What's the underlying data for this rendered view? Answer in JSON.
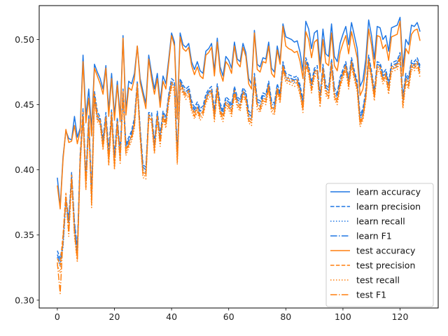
{
  "chart_data": {
    "type": "line",
    "title": "",
    "xlabel": "",
    "ylabel": "",
    "xlim": [
      -6.35,
      133.35
    ],
    "ylim": [
      0.294,
      0.526
    ],
    "xticks": [
      0,
      20,
      40,
      60,
      80,
      100,
      120
    ],
    "yticks": [
      0.3,
      0.35,
      0.4,
      0.45,
      0.5
    ],
    "grid": false,
    "legend_position": "lower-right",
    "colors": {
      "learn": "#1f77e4",
      "test": "#ff7f0e"
    },
    "series": [
      {
        "name": "learn accuracy",
        "group": "learn",
        "dash": "solid",
        "values": [
          0.394,
          0.372,
          0.41,
          0.43,
          0.424,
          0.423,
          0.441,
          0.425,
          0.432,
          0.488,
          0.441,
          0.462,
          0.432,
          0.481,
          0.475,
          0.47,
          0.462,
          0.48,
          0.446,
          0.474,
          0.442,
          0.468,
          0.441,
          0.503,
          0.446,
          0.468,
          0.466,
          0.474,
          0.495,
          0.47,
          0.46,
          0.451,
          0.488,
          0.474,
          0.462,
          0.474,
          0.452,
          0.472,
          0.466,
          0.485,
          0.505,
          0.498,
          0.443,
          0.505,
          0.496,
          0.494,
          0.497,
          0.483,
          0.477,
          0.483,
          0.476,
          0.474,
          0.491,
          0.493,
          0.497,
          0.476,
          0.501,
          0.479,
          0.472,
          0.487,
          0.484,
          0.478,
          0.498,
          0.485,
          0.483,
          0.497,
          0.49,
          0.47,
          0.466,
          0.507,
          0.481,
          0.479,
          0.486,
          0.485,
          0.498,
          0.478,
          0.475,
          0.495,
          0.484,
          0.512,
          0.502,
          0.501,
          0.5,
          0.498,
          0.499,
          0.49,
          0.476,
          0.514,
          0.508,
          0.493,
          0.505,
          0.507,
          0.481,
          0.508,
          0.489,
          0.487,
          0.512,
          0.487,
          0.483,
          0.497,
          0.504,
          0.51,
          0.496,
          0.513,
          0.503,
          0.493,
          0.464,
          0.469,
          0.485,
          0.515,
          0.503,
          0.485,
          0.51,
          0.509,
          0.5,
          0.503,
          0.491,
          0.509,
          0.51,
          0.511,
          0.517,
          0.479,
          0.5,
          0.496,
          0.511,
          0.51,
          0.513,
          0.506
        ]
      },
      {
        "name": "learn precision",
        "group": "learn",
        "dash": "dashed",
        "values": [
          0.338,
          0.332,
          0.345,
          0.38,
          0.362,
          0.398,
          0.36,
          0.34,
          0.412,
          0.447,
          0.395,
          0.442,
          0.383,
          0.46,
          0.445,
          0.44,
          0.424,
          0.444,
          0.415,
          0.446,
          0.411,
          0.44,
          0.414,
          0.462,
          0.42,
          0.425,
          0.43,
          0.44,
          0.468,
          0.432,
          0.404,
          0.402,
          0.444,
          0.444,
          0.421,
          0.445,
          0.427,
          0.445,
          0.44,
          0.458,
          0.47,
          0.468,
          0.414,
          0.47,
          0.465,
          0.462,
          0.464,
          0.453,
          0.448,
          0.452,
          0.447,
          0.449,
          0.458,
          0.462,
          0.464,
          0.446,
          0.466,
          0.451,
          0.446,
          0.456,
          0.454,
          0.45,
          0.464,
          0.456,
          0.454,
          0.463,
          0.46,
          0.445,
          0.443,
          0.474,
          0.454,
          0.453,
          0.459,
          0.458,
          0.468,
          0.453,
          0.451,
          0.466,
          0.459,
          0.483,
          0.474,
          0.473,
          0.472,
          0.471,
          0.472,
          0.465,
          0.453,
          0.486,
          0.48,
          0.467,
          0.478,
          0.48,
          0.457,
          0.481,
          0.465,
          0.463,
          0.485,
          0.463,
          0.459,
          0.471,
          0.477,
          0.483,
          0.47,
          0.486,
          0.476,
          0.468,
          0.442,
          0.447,
          0.461,
          0.488,
          0.476,
          0.461,
          0.483,
          0.482,
          0.474,
          0.477,
          0.467,
          0.482,
          0.483,
          0.484,
          0.49,
          0.456,
          0.474,
          0.471,
          0.484,
          0.483,
          0.486,
          0.48
        ]
      },
      {
        "name": "learn recall",
        "group": "learn",
        "dash": "dotted",
        "values": [
          0.333,
          0.326,
          0.341,
          0.375,
          0.359,
          0.393,
          0.356,
          0.336,
          0.405,
          0.441,
          0.39,
          0.437,
          0.378,
          0.455,
          0.44,
          0.436,
          0.42,
          0.44,
          0.41,
          0.441,
          0.407,
          0.436,
          0.41,
          0.458,
          0.416,
          0.421,
          0.426,
          0.436,
          0.464,
          0.428,
          0.4,
          0.398,
          0.44,
          0.44,
          0.417,
          0.441,
          0.423,
          0.441,
          0.436,
          0.454,
          0.466,
          0.464,
          0.41,
          0.466,
          0.461,
          0.458,
          0.46,
          0.449,
          0.444,
          0.448,
          0.443,
          0.445,
          0.454,
          0.458,
          0.46,
          0.442,
          0.462,
          0.447,
          0.442,
          0.452,
          0.45,
          0.446,
          0.46,
          0.452,
          0.45,
          0.459,
          0.456,
          0.441,
          0.439,
          0.47,
          0.45,
          0.449,
          0.455,
          0.454,
          0.464,
          0.449,
          0.447,
          0.462,
          0.455,
          0.479,
          0.47,
          0.469,
          0.468,
          0.467,
          0.468,
          0.461,
          0.449,
          0.482,
          0.476,
          0.463,
          0.474,
          0.476,
          0.453,
          0.477,
          0.461,
          0.459,
          0.481,
          0.459,
          0.455,
          0.467,
          0.473,
          0.479,
          0.466,
          0.482,
          0.472,
          0.464,
          0.438,
          0.443,
          0.457,
          0.484,
          0.472,
          0.457,
          0.479,
          0.478,
          0.47,
          0.473,
          0.463,
          0.478,
          0.479,
          0.48,
          0.486,
          0.452,
          0.47,
          0.467,
          0.48,
          0.479,
          0.482,
          0.476
        ]
      },
      {
        "name": "learn F1",
        "group": "learn",
        "dash": "dashdot",
        "values": [
          0.335,
          0.329,
          0.343,
          0.377,
          0.36,
          0.395,
          0.358,
          0.338,
          0.408,
          0.444,
          0.392,
          0.439,
          0.38,
          0.457,
          0.442,
          0.438,
          0.422,
          0.442,
          0.412,
          0.443,
          0.409,
          0.438,
          0.412,
          0.46,
          0.418,
          0.423,
          0.428,
          0.438,
          0.466,
          0.43,
          0.402,
          0.4,
          0.442,
          0.442,
          0.419,
          0.443,
          0.425,
          0.443,
          0.438,
          0.456,
          0.468,
          0.466,
          0.412,
          0.468,
          0.463,
          0.46,
          0.462,
          0.451,
          0.446,
          0.45,
          0.445,
          0.447,
          0.456,
          0.46,
          0.462,
          0.444,
          0.464,
          0.449,
          0.444,
          0.454,
          0.452,
          0.448,
          0.462,
          0.454,
          0.452,
          0.461,
          0.458,
          0.443,
          0.441,
          0.472,
          0.452,
          0.451,
          0.457,
          0.456,
          0.466,
          0.451,
          0.449,
          0.464,
          0.457,
          0.481,
          0.472,
          0.471,
          0.47,
          0.469,
          0.47,
          0.463,
          0.451,
          0.484,
          0.478,
          0.465,
          0.476,
          0.478,
          0.455,
          0.479,
          0.463,
          0.461,
          0.483,
          0.461,
          0.457,
          0.469,
          0.475,
          0.481,
          0.468,
          0.484,
          0.474,
          0.466,
          0.44,
          0.445,
          0.459,
          0.486,
          0.474,
          0.459,
          0.481,
          0.48,
          0.472,
          0.475,
          0.465,
          0.48,
          0.481,
          0.482,
          0.488,
          0.454,
          0.472,
          0.469,
          0.482,
          0.481,
          0.484,
          0.478
        ]
      },
      {
        "name": "test accuracy",
        "group": "test",
        "dash": "solid",
        "values": [
          0.388,
          0.37,
          0.408,
          0.431,
          0.421,
          0.422,
          0.434,
          0.42,
          0.43,
          0.483,
          0.436,
          0.455,
          0.426,
          0.478,
          0.472,
          0.466,
          0.458,
          0.478,
          0.441,
          0.47,
          0.438,
          0.465,
          0.437,
          0.501,
          0.442,
          0.463,
          0.461,
          0.47,
          0.495,
          0.467,
          0.457,
          0.447,
          0.485,
          0.47,
          0.458,
          0.47,
          0.448,
          0.468,
          0.462,
          0.482,
          0.503,
          0.495,
          0.439,
          0.502,
          0.493,
          0.491,
          0.494,
          0.48,
          0.473,
          0.479,
          0.472,
          0.47,
          0.488,
          0.49,
          0.494,
          0.472,
          0.498,
          0.475,
          0.468,
          0.483,
          0.48,
          0.474,
          0.495,
          0.482,
          0.479,
          0.494,
          0.487,
          0.466,
          0.462,
          0.505,
          0.477,
          0.475,
          0.483,
          0.482,
          0.495,
          0.474,
          0.471,
          0.492,
          0.481,
          0.51,
          0.495,
          0.493,
          0.492,
          0.49,
          0.491,
          0.483,
          0.47,
          0.506,
          0.5,
          0.486,
          0.498,
          0.5,
          0.475,
          0.5,
          0.482,
          0.48,
          0.505,
          0.48,
          0.476,
          0.49,
          0.497,
          0.503,
          0.489,
          0.506,
          0.496,
          0.486,
          0.457,
          0.462,
          0.478,
          0.508,
          0.496,
          0.478,
          0.503,
          0.502,
          0.493,
          0.496,
          0.484,
          0.502,
          0.503,
          0.504,
          0.514,
          0.472,
          0.493,
          0.489,
          0.504,
          0.507,
          0.508,
          0.499
        ]
      },
      {
        "name": "test precision",
        "group": "test",
        "dash": "dashed",
        "values": [
          0.332,
          0.327,
          0.35,
          0.382,
          0.353,
          0.396,
          0.353,
          0.333,
          0.41,
          0.444,
          0.389,
          0.439,
          0.376,
          0.458,
          0.442,
          0.438,
          0.419,
          0.441,
          0.408,
          0.444,
          0.404,
          0.437,
          0.409,
          0.46,
          0.415,
          0.421,
          0.426,
          0.436,
          0.466,
          0.428,
          0.398,
          0.397,
          0.442,
          0.44,
          0.416,
          0.442,
          0.422,
          0.442,
          0.436,
          0.455,
          0.467,
          0.464,
          0.408,
          0.467,
          0.462,
          0.458,
          0.461,
          0.449,
          0.443,
          0.448,
          0.442,
          0.445,
          0.455,
          0.459,
          0.461,
          0.441,
          0.463,
          0.446,
          0.441,
          0.452,
          0.45,
          0.445,
          0.461,
          0.452,
          0.449,
          0.46,
          0.456,
          0.44,
          0.438,
          0.471,
          0.45,
          0.448,
          0.455,
          0.454,
          0.465,
          0.448,
          0.446,
          0.463,
          0.455,
          0.48,
          0.471,
          0.47,
          0.469,
          0.468,
          0.469,
          0.461,
          0.448,
          0.483,
          0.477,
          0.463,
          0.475,
          0.477,
          0.452,
          0.478,
          0.461,
          0.458,
          0.482,
          0.458,
          0.454,
          0.467,
          0.474,
          0.48,
          0.466,
          0.483,
          0.473,
          0.464,
          0.437,
          0.442,
          0.457,
          0.485,
          0.473,
          0.457,
          0.48,
          0.479,
          0.47,
          0.474,
          0.462,
          0.479,
          0.48,
          0.481,
          0.487,
          0.451,
          0.47,
          0.466,
          0.481,
          0.48,
          0.483,
          0.475
        ]
      },
      {
        "name": "test recall",
        "group": "test",
        "dash": "dotted",
        "values": [
          0.327,
          0.321,
          0.346,
          0.377,
          0.349,
          0.391,
          0.349,
          0.329,
          0.404,
          0.438,
          0.384,
          0.434,
          0.371,
          0.453,
          0.437,
          0.434,
          0.415,
          0.437,
          0.403,
          0.439,
          0.4,
          0.433,
          0.405,
          0.456,
          0.411,
          0.417,
          0.422,
          0.432,
          0.462,
          0.424,
          0.394,
          0.393,
          0.438,
          0.436,
          0.412,
          0.438,
          0.418,
          0.438,
          0.432,
          0.451,
          0.463,
          0.46,
          0.404,
          0.463,
          0.458,
          0.454,
          0.457,
          0.445,
          0.439,
          0.444,
          0.438,
          0.441,
          0.451,
          0.455,
          0.457,
          0.437,
          0.459,
          0.442,
          0.437,
          0.448,
          0.446,
          0.441,
          0.457,
          0.448,
          0.445,
          0.456,
          0.452,
          0.436,
          0.434,
          0.467,
          0.446,
          0.444,
          0.451,
          0.45,
          0.461,
          0.444,
          0.442,
          0.459,
          0.451,
          0.476,
          0.467,
          0.466,
          0.465,
          0.464,
          0.465,
          0.457,
          0.444,
          0.479,
          0.473,
          0.459,
          0.471,
          0.473,
          0.448,
          0.474,
          0.457,
          0.454,
          0.478,
          0.454,
          0.45,
          0.463,
          0.47,
          0.476,
          0.462,
          0.479,
          0.469,
          0.46,
          0.433,
          0.438,
          0.453,
          0.481,
          0.469,
          0.453,
          0.476,
          0.475,
          0.466,
          0.47,
          0.458,
          0.475,
          0.476,
          0.477,
          0.483,
          0.447,
          0.466,
          0.462,
          0.477,
          0.476,
          0.479,
          0.471
        ]
      },
      {
        "name": "test F1",
        "group": "test",
        "dash": "dashdot",
        "values": [
          0.329,
          0.305,
          0.348,
          0.379,
          0.351,
          0.393,
          0.351,
          0.331,
          0.407,
          0.441,
          0.386,
          0.436,
          0.373,
          0.455,
          0.439,
          0.436,
          0.417,
          0.439,
          0.405,
          0.441,
          0.402,
          0.435,
          0.407,
          0.458,
          0.413,
          0.419,
          0.424,
          0.434,
          0.464,
          0.426,
          0.396,
          0.395,
          0.44,
          0.438,
          0.414,
          0.44,
          0.42,
          0.44,
          0.434,
          0.453,
          0.465,
          0.462,
          0.406,
          0.465,
          0.46,
          0.456,
          0.459,
          0.447,
          0.441,
          0.446,
          0.44,
          0.443,
          0.453,
          0.457,
          0.459,
          0.439,
          0.461,
          0.444,
          0.439,
          0.45,
          0.448,
          0.443,
          0.459,
          0.45,
          0.447,
          0.458,
          0.454,
          0.438,
          0.436,
          0.469,
          0.448,
          0.446,
          0.453,
          0.452,
          0.463,
          0.446,
          0.444,
          0.461,
          0.453,
          0.478,
          0.469,
          0.468,
          0.467,
          0.466,
          0.467,
          0.459,
          0.446,
          0.481,
          0.475,
          0.461,
          0.473,
          0.475,
          0.45,
          0.476,
          0.459,
          0.456,
          0.48,
          0.456,
          0.452,
          0.465,
          0.472,
          0.478,
          0.464,
          0.481,
          0.471,
          0.462,
          0.435,
          0.44,
          0.455,
          0.483,
          0.471,
          0.455,
          0.478,
          0.477,
          0.468,
          0.472,
          0.46,
          0.477,
          0.478,
          0.479,
          0.485,
          0.449,
          0.468,
          0.464,
          0.479,
          0.478,
          0.481,
          0.473
        ]
      }
    ]
  }
}
